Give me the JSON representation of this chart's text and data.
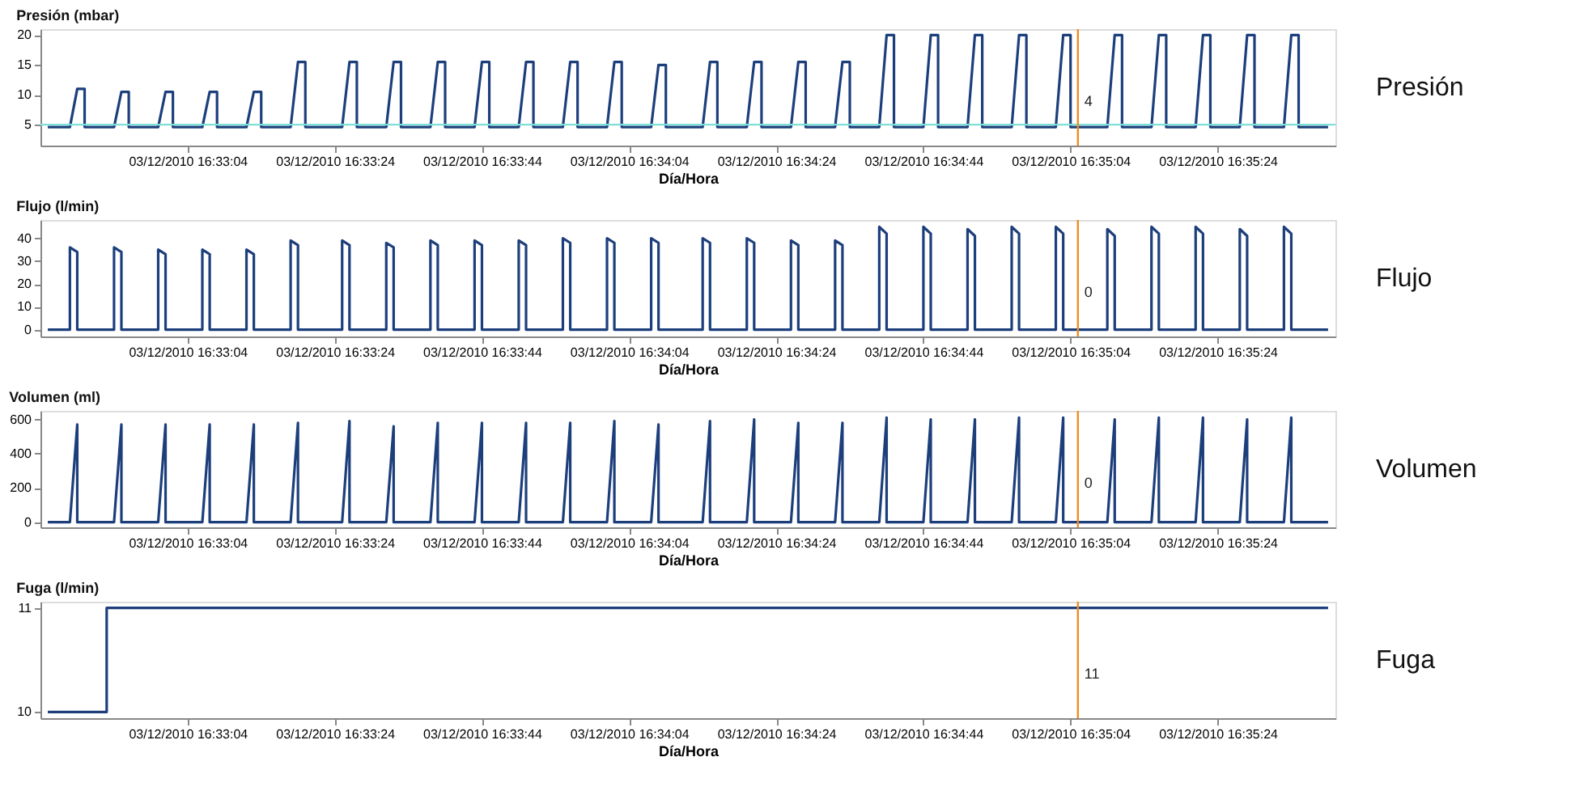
{
  "chart_data": [
    {
      "type": "line",
      "title": "Presión (mbar)",
      "xlabel": "Día/Hora",
      "annotations": [
        "Presión"
      ],
      "x": [
        "2010-12-03T16:32:45",
        "2010-12-03T16:32:48",
        "2010-12-03T16:32:49",
        "2010-12-03T16:32:50",
        "2010-12-03T16:32:50",
        "2010-12-03T16:32:54",
        "2010-12-03T16:32:55",
        "2010-12-03T16:32:56",
        "2010-12-03T16:32:56",
        "2010-12-03T16:33:00",
        "2010-12-03T16:33:01",
        "2010-12-03T16:33:02",
        "2010-12-03T16:33:02",
        "2010-12-03T16:33:06",
        "2010-12-03T16:33:07",
        "2010-12-03T16:33:08",
        "2010-12-03T16:33:08",
        "2010-12-03T16:33:12",
        "2010-12-03T16:33:13",
        "2010-12-03T16:33:14",
        "2010-12-03T16:33:14",
        "2010-12-03T16:33:18",
        "2010-12-03T16:33:19",
        "2010-12-03T16:33:20",
        "2010-12-03T16:33:20",
        "2010-12-03T16:33:25",
        "2010-12-03T16:33:26",
        "2010-12-03T16:33:27",
        "2010-12-03T16:33:27",
        "2010-12-03T16:33:31",
        "2010-12-03T16:33:32",
        "2010-12-03T16:33:33",
        "2010-12-03T16:33:33",
        "2010-12-03T16:33:37",
        "2010-12-03T16:33:38",
        "2010-12-03T16:33:39",
        "2010-12-03T16:33:39",
        "2010-12-03T16:33:43",
        "2010-12-03T16:33:44",
        "2010-12-03T16:33:45",
        "2010-12-03T16:33:45",
        "2010-12-03T16:33:49",
        "2010-12-03T16:33:50",
        "2010-12-03T16:33:51",
        "2010-12-03T16:33:51",
        "2010-12-03T16:33:55",
        "2010-12-03T16:33:56",
        "2010-12-03T16:33:57",
        "2010-12-03T16:33:57",
        "2010-12-03T16:34:01",
        "2010-12-03T16:34:02",
        "2010-12-03T16:34:03",
        "2010-12-03T16:34:03",
        "2010-12-03T16:34:07",
        "2010-12-03T16:34:08",
        "2010-12-03T16:34:09",
        "2010-12-03T16:34:09",
        "2010-12-03T16:34:14",
        "2010-12-03T16:34:15",
        "2010-12-03T16:34:16",
        "2010-12-03T16:34:16",
        "2010-12-03T16:34:20",
        "2010-12-03T16:34:21",
        "2010-12-03T16:34:22",
        "2010-12-03T16:34:22",
        "2010-12-03T16:34:26",
        "2010-12-03T16:34:27",
        "2010-12-03T16:34:28",
        "2010-12-03T16:34:28",
        "2010-12-03T16:34:32",
        "2010-12-03T16:34:33",
        "2010-12-03T16:34:34",
        "2010-12-03T16:34:34",
        "2010-12-03T16:34:38",
        "2010-12-03T16:34:39",
        "2010-12-03T16:34:40",
        "2010-12-03T16:34:40",
        "2010-12-03T16:34:44",
        "2010-12-03T16:34:45",
        "2010-12-03T16:34:46",
        "2010-12-03T16:34:46",
        "2010-12-03T16:34:50",
        "2010-12-03T16:34:51",
        "2010-12-03T16:34:52",
        "2010-12-03T16:34:52",
        "2010-12-03T16:34:56",
        "2010-12-03T16:34:57",
        "2010-12-03T16:34:58",
        "2010-12-03T16:34:58",
        "2010-12-03T16:35:02",
        "2010-12-03T16:35:03",
        "2010-12-03T16:35:04",
        "2010-12-03T16:35:04",
        "2010-12-03T16:35:09",
        "2010-12-03T16:35:10",
        "2010-12-03T16:35:11",
        "2010-12-03T16:35:11",
        "2010-12-03T16:35:15",
        "2010-12-03T16:35:16",
        "2010-12-03T16:35:17",
        "2010-12-03T16:35:17",
        "2010-12-03T16:35:21",
        "2010-12-03T16:35:22",
        "2010-12-03T16:35:23",
        "2010-12-03T16:35:23",
        "2010-12-03T16:35:27",
        "2010-12-03T16:35:28",
        "2010-12-03T16:35:29",
        "2010-12-03T16:35:29",
        "2010-12-03T16:35:33",
        "2010-12-03T16:35:34",
        "2010-12-03T16:35:35",
        "2010-12-03T16:35:35",
        "2010-12-03T16:35:39"
      ],
      "series": [
        {
          "color": "#1c3f7c",
          "values": [
            4.6,
            4.6,
            11,
            11,
            4.6,
            4.6,
            10.5,
            10.5,
            4.6,
            4.6,
            10.5,
            10.5,
            4.6,
            4.6,
            10.5,
            10.5,
            4.6,
            4.6,
            10.5,
            10.5,
            4.6,
            4.6,
            15.5,
            15.5,
            4.6,
            4.6,
            15.5,
            15.5,
            4.6,
            4.6,
            15.5,
            15.5,
            4.6,
            4.6,
            15.5,
            15.5,
            4.6,
            4.6,
            15.5,
            15.5,
            4.6,
            4.6,
            15.5,
            15.5,
            4.6,
            4.6,
            15.5,
            15.5,
            4.6,
            4.6,
            15.5,
            15.5,
            4.6,
            4.6,
            15,
            15,
            4.6,
            4.6,
            15.5,
            15.5,
            4.6,
            4.6,
            15.5,
            15.5,
            4.6,
            4.6,
            15.5,
            15.5,
            4.6,
            4.6,
            15.5,
            15.5,
            4.6,
            4.6,
            20,
            20,
            4.6,
            4.6,
            20,
            20,
            4.6,
            4.6,
            20,
            20,
            4.6,
            4.6,
            20,
            20,
            4.6,
            4.6,
            20,
            20,
            4.6,
            4.6,
            20,
            20,
            4.6,
            4.6,
            20,
            20,
            4.6,
            4.6,
            20,
            20,
            4.6,
            4.6,
            20,
            20,
            4.6,
            4.6,
            20,
            20,
            4.6,
            4.6
          ]
        }
      ],
      "xlim": [
        "2010-12-03T16:32:44",
        "2010-12-03T16:35:40"
      ],
      "xticks": [
        {
          "value": "2010-12-03T16:33:04",
          "label": "03/12/2010 16:33:04"
        },
        {
          "value": "2010-12-03T16:33:24",
          "label": "03/12/2010 16:33:24"
        },
        {
          "value": "2010-12-03T16:33:44",
          "label": "03/12/2010 16:33:44"
        },
        {
          "value": "2010-12-03T16:34:04",
          "label": "03/12/2010 16:34:04"
        },
        {
          "value": "2010-12-03T16:34:24",
          "label": "03/12/2010 16:34:24"
        },
        {
          "value": "2010-12-03T16:34:44",
          "label": "03/12/2010 16:34:44"
        },
        {
          "value": "2010-12-03T16:35:04",
          "label": "03/12/2010 16:35:04"
        },
        {
          "value": "2010-12-03T16:35:24",
          "label": "03/12/2010 16:35:24"
        }
      ],
      "ylim": [
        1.5,
        21
      ],
      "yticks": [
        5,
        10,
        15,
        20
      ],
      "ref_lines": [
        {
          "axis": "x",
          "value": "2010-12-03T16:35:05",
          "label": "4",
          "color": "#f08c1e"
        },
        {
          "axis": "y",
          "value": 5,
          "color": "#7fe0d8"
        }
      ]
    },
    {
      "type": "line",
      "title": "Flujo (l/min)",
      "xlabel": "Día/Hora",
      "annotations": [
        "Flujo"
      ],
      "x": [
        "2010-12-03T16:32:45",
        "2010-12-03T16:32:48",
        "2010-12-03T16:32:48",
        "2010-12-03T16:32:49",
        "2010-12-03T16:32:49",
        "2010-12-03T16:32:54",
        "2010-12-03T16:32:54",
        "2010-12-03T16:32:55",
        "2010-12-03T16:32:55",
        "2010-12-03T16:33:00",
        "2010-12-03T16:33:00",
        "2010-12-03T16:33:01",
        "2010-12-03T16:33:01",
        "2010-12-03T16:33:06",
        "2010-12-03T16:33:06",
        "2010-12-03T16:33:07",
        "2010-12-03T16:33:07",
        "2010-12-03T16:33:12",
        "2010-12-03T16:33:12",
        "2010-12-03T16:33:13",
        "2010-12-03T16:33:13",
        "2010-12-03T16:33:18",
        "2010-12-03T16:33:18",
        "2010-12-03T16:33:19",
        "2010-12-03T16:33:19",
        "2010-12-03T16:33:25",
        "2010-12-03T16:33:25",
        "2010-12-03T16:33:26",
        "2010-12-03T16:33:26",
        "2010-12-03T16:33:31",
        "2010-12-03T16:33:31",
        "2010-12-03T16:33:32",
        "2010-12-03T16:33:32",
        "2010-12-03T16:33:37",
        "2010-12-03T16:33:37",
        "2010-12-03T16:33:38",
        "2010-12-03T16:33:38",
        "2010-12-03T16:33:43",
        "2010-12-03T16:33:43",
        "2010-12-03T16:33:44",
        "2010-12-03T16:33:44",
        "2010-12-03T16:33:49",
        "2010-12-03T16:33:49",
        "2010-12-03T16:33:50",
        "2010-12-03T16:33:50",
        "2010-12-03T16:33:55",
        "2010-12-03T16:33:55",
        "2010-12-03T16:33:56",
        "2010-12-03T16:33:56",
        "2010-12-03T16:34:01",
        "2010-12-03T16:34:01",
        "2010-12-03T16:34:02",
        "2010-12-03T16:34:02",
        "2010-12-03T16:34:07",
        "2010-12-03T16:34:07",
        "2010-12-03T16:34:08",
        "2010-12-03T16:34:08",
        "2010-12-03T16:34:14",
        "2010-12-03T16:34:14",
        "2010-12-03T16:34:15",
        "2010-12-03T16:34:15",
        "2010-12-03T16:34:20",
        "2010-12-03T16:34:20",
        "2010-12-03T16:34:21",
        "2010-12-03T16:34:21",
        "2010-12-03T16:34:26",
        "2010-12-03T16:34:26",
        "2010-12-03T16:34:27",
        "2010-12-03T16:34:27",
        "2010-12-03T16:34:32",
        "2010-12-03T16:34:32",
        "2010-12-03T16:34:33",
        "2010-12-03T16:34:33",
        "2010-12-03T16:34:38",
        "2010-12-03T16:34:38",
        "2010-12-03T16:34:39",
        "2010-12-03T16:34:39",
        "2010-12-03T16:34:44",
        "2010-12-03T16:34:44",
        "2010-12-03T16:34:45",
        "2010-12-03T16:34:45",
        "2010-12-03T16:34:50",
        "2010-12-03T16:34:50",
        "2010-12-03T16:34:51",
        "2010-12-03T16:34:51",
        "2010-12-03T16:34:56",
        "2010-12-03T16:34:56",
        "2010-12-03T16:34:57",
        "2010-12-03T16:34:57",
        "2010-12-03T16:35:02",
        "2010-12-03T16:35:02",
        "2010-12-03T16:35:03",
        "2010-12-03T16:35:03",
        "2010-12-03T16:35:09",
        "2010-12-03T16:35:09",
        "2010-12-03T16:35:10",
        "2010-12-03T16:35:10",
        "2010-12-03T16:35:15",
        "2010-12-03T16:35:15",
        "2010-12-03T16:35:16",
        "2010-12-03T16:35:16",
        "2010-12-03T16:35:21",
        "2010-12-03T16:35:21",
        "2010-12-03T16:35:22",
        "2010-12-03T16:35:22",
        "2010-12-03T16:35:27",
        "2010-12-03T16:35:27",
        "2010-12-03T16:35:28",
        "2010-12-03T16:35:28",
        "2010-12-03T16:35:33",
        "2010-12-03T16:35:33",
        "2010-12-03T16:35:34",
        "2010-12-03T16:35:34",
        "2010-12-03T16:35:39"
      ],
      "series": [
        {
          "color": "#1c3f7c",
          "values": [
            0,
            0,
            36,
            34,
            0,
            0,
            36,
            34,
            0,
            0,
            35,
            33,
            0,
            0,
            35,
            33,
            0,
            0,
            35,
            33,
            0,
            0,
            39,
            37,
            0,
            0,
            39,
            37,
            0,
            0,
            38,
            36,
            0,
            0,
            39,
            37,
            0,
            0,
            39,
            37,
            0,
            0,
            39,
            37,
            0,
            0,
            40,
            38,
            0,
            0,
            40,
            38,
            0,
            0,
            40,
            38,
            0,
            0,
            40,
            38,
            0,
            0,
            40,
            38,
            0,
            0,
            39,
            37,
            0,
            0,
            39,
            37,
            0,
            0,
            45,
            42,
            0,
            0,
            45,
            42,
            0,
            0,
            44,
            41,
            0,
            0,
            45,
            42,
            0,
            0,
            45,
            42,
            0,
            0,
            44,
            41,
            0,
            0,
            45,
            42,
            0,
            0,
            45,
            42,
            0,
            0,
            44,
            41,
            0,
            0,
            45,
            42,
            0,
            0
          ]
        }
      ],
      "xlim": [
        "2010-12-03T16:32:44",
        "2010-12-03T16:35:40"
      ],
      "xticks": [
        {
          "value": "2010-12-03T16:33:04",
          "label": "03/12/2010 16:33:04"
        },
        {
          "value": "2010-12-03T16:33:24",
          "label": "03/12/2010 16:33:24"
        },
        {
          "value": "2010-12-03T16:33:44",
          "label": "03/12/2010 16:33:44"
        },
        {
          "value": "2010-12-03T16:34:04",
          "label": "03/12/2010 16:34:04"
        },
        {
          "value": "2010-12-03T16:34:24",
          "label": "03/12/2010 16:34:24"
        },
        {
          "value": "2010-12-03T16:34:44",
          "label": "03/12/2010 16:34:44"
        },
        {
          "value": "2010-12-03T16:35:04",
          "label": "03/12/2010 16:35:04"
        },
        {
          "value": "2010-12-03T16:35:24",
          "label": "03/12/2010 16:35:24"
        }
      ],
      "ylim": [
        -3,
        48
      ],
      "yticks": [
        0,
        10,
        20,
        30,
        40
      ],
      "ref_lines": [
        {
          "axis": "x",
          "value": "2010-12-03T16:35:05",
          "label": "0",
          "color": "#f08c1e"
        }
      ]
    },
    {
      "type": "line",
      "title": "Volumen (ml)",
      "xlabel": "Día/Hora",
      "annotations": [
        "Volumen"
      ],
      "x": [
        "2010-12-03T16:32:45",
        "2010-12-03T16:32:48",
        "2010-12-03T16:32:49",
        "2010-12-03T16:32:49",
        "2010-12-03T16:32:54",
        "2010-12-03T16:32:55",
        "2010-12-03T16:32:55",
        "2010-12-03T16:33:00",
        "2010-12-03T16:33:01",
        "2010-12-03T16:33:01",
        "2010-12-03T16:33:06",
        "2010-12-03T16:33:07",
        "2010-12-03T16:33:07",
        "2010-12-03T16:33:12",
        "2010-12-03T16:33:13",
        "2010-12-03T16:33:13",
        "2010-12-03T16:33:18",
        "2010-12-03T16:33:19",
        "2010-12-03T16:33:19",
        "2010-12-03T16:33:25",
        "2010-12-03T16:33:26",
        "2010-12-03T16:33:26",
        "2010-12-03T16:33:31",
        "2010-12-03T16:33:32",
        "2010-12-03T16:33:32",
        "2010-12-03T16:33:37",
        "2010-12-03T16:33:38",
        "2010-12-03T16:33:38",
        "2010-12-03T16:33:43",
        "2010-12-03T16:33:44",
        "2010-12-03T16:33:44",
        "2010-12-03T16:33:49",
        "2010-12-03T16:33:50",
        "2010-12-03T16:33:50",
        "2010-12-03T16:33:55",
        "2010-12-03T16:33:56",
        "2010-12-03T16:33:56",
        "2010-12-03T16:34:01",
        "2010-12-03T16:34:02",
        "2010-12-03T16:34:02",
        "2010-12-03T16:34:07",
        "2010-12-03T16:34:08",
        "2010-12-03T16:34:08",
        "2010-12-03T16:34:14",
        "2010-12-03T16:34:15",
        "2010-12-03T16:34:15",
        "2010-12-03T16:34:20",
        "2010-12-03T16:34:21",
        "2010-12-03T16:34:21",
        "2010-12-03T16:34:26",
        "2010-12-03T16:34:27",
        "2010-12-03T16:34:27",
        "2010-12-03T16:34:32",
        "2010-12-03T16:34:33",
        "2010-12-03T16:34:33",
        "2010-12-03T16:34:38",
        "2010-12-03T16:34:39",
        "2010-12-03T16:34:39",
        "2010-12-03T16:34:44",
        "2010-12-03T16:34:45",
        "2010-12-03T16:34:45",
        "2010-12-03T16:34:50",
        "2010-12-03T16:34:51",
        "2010-12-03T16:34:51",
        "2010-12-03T16:34:56",
        "2010-12-03T16:34:57",
        "2010-12-03T16:34:57",
        "2010-12-03T16:35:02",
        "2010-12-03T16:35:03",
        "2010-12-03T16:35:03",
        "2010-12-03T16:35:09",
        "2010-12-03T16:35:10",
        "2010-12-03T16:35:10",
        "2010-12-03T16:35:15",
        "2010-12-03T16:35:16",
        "2010-12-03T16:35:16",
        "2010-12-03T16:35:21",
        "2010-12-03T16:35:22",
        "2010-12-03T16:35:22",
        "2010-12-03T16:35:27",
        "2010-12-03T16:35:28",
        "2010-12-03T16:35:28",
        "2010-12-03T16:35:33",
        "2010-12-03T16:35:34",
        "2010-12-03T16:35:34",
        "2010-12-03T16:35:39"
      ],
      "series": [
        {
          "color": "#1c3f7c",
          "values": [
            0,
            0,
            570,
            0,
            0,
            570,
            0,
            0,
            570,
            0,
            0,
            570,
            0,
            0,
            570,
            0,
            0,
            580,
            0,
            0,
            590,
            0,
            0,
            560,
            0,
            0,
            580,
            0,
            0,
            580,
            0,
            0,
            580,
            0,
            0,
            580,
            0,
            0,
            590,
            0,
            0,
            570,
            0,
            0,
            590,
            0,
            0,
            600,
            0,
            0,
            580,
            0,
            0,
            580,
            0,
            0,
            610,
            0,
            0,
            600,
            0,
            0,
            600,
            0,
            0,
            610,
            0,
            0,
            610,
            0,
            0,
            600,
            0,
            0,
            610,
            0,
            0,
            610,
            0,
            0,
            600,
            0,
            0,
            610,
            0,
            0
          ]
        }
      ],
      "xlim": [
        "2010-12-03T16:32:44",
        "2010-12-03T16:35:40"
      ],
      "xticks": [
        {
          "value": "2010-12-03T16:33:04",
          "label": "03/12/2010 16:33:04"
        },
        {
          "value": "2010-12-03T16:33:24",
          "label": "03/12/2010 16:33:24"
        },
        {
          "value": "2010-12-03T16:33:44",
          "label": "03/12/2010 16:33:44"
        },
        {
          "value": "2010-12-03T16:34:04",
          "label": "03/12/2010 16:34:04"
        },
        {
          "value": "2010-12-03T16:34:24",
          "label": "03/12/2010 16:34:24"
        },
        {
          "value": "2010-12-03T16:34:44",
          "label": "03/12/2010 16:34:44"
        },
        {
          "value": "2010-12-03T16:35:04",
          "label": "03/12/2010 16:35:04"
        },
        {
          "value": "2010-12-03T16:35:24",
          "label": "03/12/2010 16:35:24"
        }
      ],
      "ylim": [
        -30,
        650
      ],
      "yticks": [
        0,
        200,
        400,
        600
      ],
      "ref_lines": [
        {
          "axis": "x",
          "value": "2010-12-03T16:35:05",
          "label": "0",
          "color": "#f08c1e"
        }
      ]
    },
    {
      "type": "step",
      "title": "Fuga (l/min)",
      "xlabel": "Día/Hora",
      "annotations": [
        "Fuga"
      ],
      "x": [
        "2010-12-03T16:32:45",
        "2010-12-03T16:32:53",
        "2010-12-03T16:35:39"
      ],
      "series": [
        {
          "color": "#1c3f7c",
          "values": [
            10,
            11,
            11
          ]
        }
      ],
      "xlim": [
        "2010-12-03T16:32:44",
        "2010-12-03T16:35:40"
      ],
      "xticks": [
        {
          "value": "2010-12-03T16:33:04",
          "label": "03/12/2010 16:33:04"
        },
        {
          "value": "2010-12-03T16:33:24",
          "label": "03/12/2010 16:33:24"
        },
        {
          "value": "2010-12-03T16:33:44",
          "label": "03/12/2010 16:33:44"
        },
        {
          "value": "2010-12-03T16:34:04",
          "label": "03/12/2010 16:34:04"
        },
        {
          "value": "2010-12-03T16:34:24",
          "label": "03/12/2010 16:34:24"
        },
        {
          "value": "2010-12-03T16:34:44",
          "label": "03/12/2010 16:34:44"
        },
        {
          "value": "2010-12-03T16:35:04",
          "label": "03/12/2010 16:35:04"
        },
        {
          "value": "2010-12-03T16:35:24",
          "label": "03/12/2010 16:35:24"
        }
      ],
      "ylim": [
        9.94,
        11.06
      ],
      "yticks": [
        10,
        11
      ],
      "ref_lines": [
        {
          "axis": "x",
          "value": "2010-12-03T16:35:05",
          "label": "11",
          "color": "#f08c1e"
        }
      ]
    }
  ]
}
